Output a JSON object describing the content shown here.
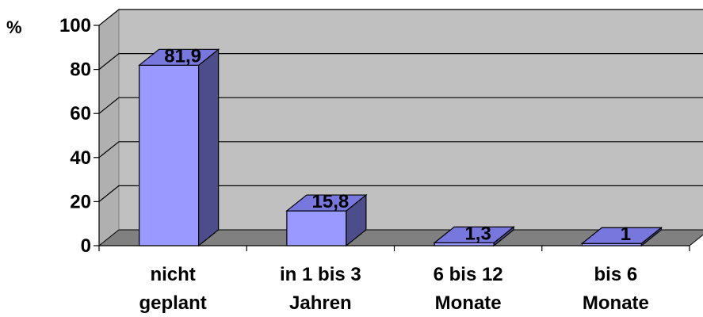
{
  "chart_data": {
    "type": "bar",
    "y_unit": "%",
    "categories": [
      [
        "nicht",
        "geplant"
      ],
      [
        "in 1 bis 3",
        "Jahren"
      ],
      [
        "6 bis 12",
        "Monate"
      ],
      [
        "bis 6",
        "Monate"
      ]
    ],
    "values": [
      81.9,
      15.8,
      1.3,
      1
    ],
    "value_labels": [
      "81,9",
      "15,8",
      "1,3",
      "1"
    ],
    "yticks": [
      0,
      20,
      40,
      60,
      80,
      100
    ],
    "ylim": [
      0,
      100
    ],
    "grid": true,
    "style_3d": true,
    "colors": {
      "bar_front": "#9999ff",
      "bar_side": "#4d4d8c",
      "bar_top": "#7777dd",
      "wall": "#c0c0c0",
      "floor": "#808080",
      "wall_side": "#b0b0b0"
    }
  }
}
